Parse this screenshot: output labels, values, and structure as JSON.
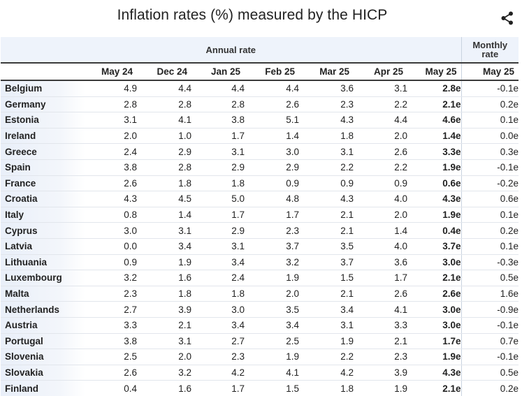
{
  "title": "Inflation rates (%) measured by the HICP",
  "share_icon": "share-icon",
  "header": {
    "annual_label": "Annual rate",
    "monthly_label_line1": "Monthly",
    "monthly_label_line2": "rate",
    "columns": [
      "May 24",
      "Dec 24",
      "Jan 25",
      "Feb 25",
      "Mar 25",
      "Apr 25",
      "May 25",
      "May 25"
    ]
  },
  "chart_data": {
    "type": "table",
    "title": "Inflation rates (%) measured by the HICP",
    "column_groups": [
      {
        "name": "Annual rate",
        "columns": [
          "May 24",
          "Dec 24",
          "Jan 25",
          "Feb 25",
          "Mar 25",
          "Apr 25",
          "May 25"
        ]
      },
      {
        "name": "Monthly rate",
        "columns": [
          "May 25"
        ]
      }
    ],
    "columns": [
      "May 24",
      "Dec 24",
      "Jan 25",
      "Feb 25",
      "Mar 25",
      "Apr 25",
      "May 25",
      "May 25"
    ],
    "rows": [
      {
        "country": "Belgium",
        "values": [
          "4.9",
          "4.4",
          "4.4",
          "4.4",
          "3.6",
          "3.1",
          "2.8e",
          "-0.1e"
        ]
      },
      {
        "country": "Germany",
        "values": [
          "2.8",
          "2.8",
          "2.8",
          "2.6",
          "2.3",
          "2.2",
          "2.1e",
          "0.2e"
        ]
      },
      {
        "country": "Estonia",
        "values": [
          "3.1",
          "4.1",
          "3.8",
          "5.1",
          "4.3",
          "4.4",
          "4.6e",
          "0.1e"
        ]
      },
      {
        "country": "Ireland",
        "values": [
          "2.0",
          "1.0",
          "1.7",
          "1.4",
          "1.8",
          "2.0",
          "1.4e",
          "0.0e"
        ]
      },
      {
        "country": "Greece",
        "values": [
          "2.4",
          "2.9",
          "3.1",
          "3.0",
          "3.1",
          "2.6",
          "3.3e",
          "0.3e"
        ]
      },
      {
        "country": "Spain",
        "values": [
          "3.8",
          "2.8",
          "2.9",
          "2.9",
          "2.2",
          "2.2",
          "1.9e",
          "-0.1e"
        ]
      },
      {
        "country": "France",
        "values": [
          "2.6",
          "1.8",
          "1.8",
          "0.9",
          "0.9",
          "0.9",
          "0.6e",
          "-0.2e"
        ]
      },
      {
        "country": "Croatia",
        "values": [
          "4.3",
          "4.5",
          "5.0",
          "4.8",
          "4.3",
          "4.0",
          "4.3e",
          "0.6e"
        ]
      },
      {
        "country": "Italy",
        "values": [
          "0.8",
          "1.4",
          "1.7",
          "1.7",
          "2.1",
          "2.0",
          "1.9e",
          "0.1e"
        ]
      },
      {
        "country": "Cyprus",
        "values": [
          "3.0",
          "3.1",
          "2.9",
          "2.3",
          "2.1",
          "1.4",
          "0.4e",
          "0.2e"
        ]
      },
      {
        "country": "Latvia",
        "values": [
          "0.0",
          "3.4",
          "3.1",
          "3.7",
          "3.5",
          "4.0",
          "3.7e",
          "0.1e"
        ]
      },
      {
        "country": "Lithuania",
        "values": [
          "0.9",
          "1.9",
          "3.4",
          "3.2",
          "3.7",
          "3.6",
          "3.0e",
          "-0.3e"
        ]
      },
      {
        "country": "Luxembourg",
        "values": [
          "3.2",
          "1.6",
          "2.4",
          "1.9",
          "1.5",
          "1.7",
          "2.1e",
          "0.5e"
        ]
      },
      {
        "country": "Malta",
        "values": [
          "2.3",
          "1.8",
          "1.8",
          "2.0",
          "2.1",
          "2.6",
          "2.6e",
          "1.6e"
        ]
      },
      {
        "country": "Netherlands",
        "values": [
          "2.7",
          "3.9",
          "3.0",
          "3.5",
          "3.4",
          "4.1",
          "3.0e",
          "-0.9e"
        ]
      },
      {
        "country": "Austria",
        "values": [
          "3.3",
          "2.1",
          "3.4",
          "3.4",
          "3.1",
          "3.3",
          "3.0e",
          "-0.1e"
        ]
      },
      {
        "country": "Portugal",
        "values": [
          "3.8",
          "3.1",
          "2.7",
          "2.5",
          "1.9",
          "2.1",
          "1.7e",
          "0.7e"
        ]
      },
      {
        "country": "Slovenia",
        "values": [
          "2.5",
          "2.0",
          "2.3",
          "1.9",
          "2.2",
          "2.3",
          "1.9e",
          "-0.1e"
        ]
      },
      {
        "country": "Slovakia",
        "values": [
          "2.6",
          "3.2",
          "4.2",
          "4.1",
          "4.2",
          "3.9",
          "4.3e",
          "0.5e"
        ]
      },
      {
        "country": "Finland",
        "values": [
          "0.4",
          "1.6",
          "1.7",
          "1.5",
          "1.8",
          "1.9",
          "2.1e",
          "0.2e"
        ]
      }
    ]
  }
}
